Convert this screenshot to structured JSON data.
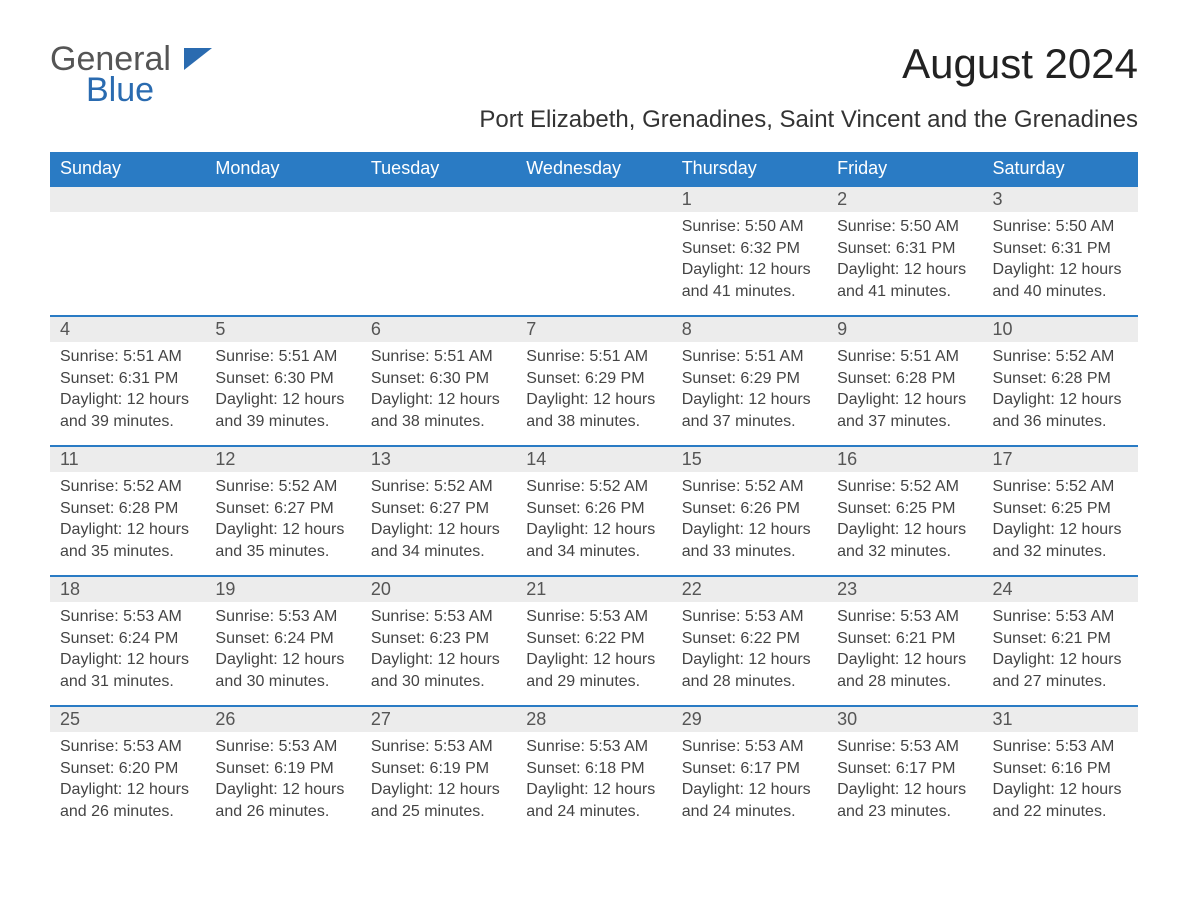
{
  "logo": {
    "text1": "General",
    "text2": "Blue"
  },
  "title": "August 2024",
  "location": "Port Elizabeth, Grenadines, Saint Vincent and the Grenadines",
  "colors": {
    "header_bg": "#2a7bc4",
    "header_text": "#ffffff",
    "daynum_bg": "#ececec",
    "border": "#2a7bc4",
    "logo_blue": "#2a6bb0",
    "logo_gray": "#555555",
    "body_text": "#444444"
  },
  "weekdays": [
    "Sunday",
    "Monday",
    "Tuesday",
    "Wednesday",
    "Thursday",
    "Friday",
    "Saturday"
  ],
  "weeks": [
    [
      null,
      null,
      null,
      null,
      {
        "n": "1",
        "sr": "5:50 AM",
        "ss": "6:32 PM",
        "dl": "12 hours and 41 minutes."
      },
      {
        "n": "2",
        "sr": "5:50 AM",
        "ss": "6:31 PM",
        "dl": "12 hours and 41 minutes."
      },
      {
        "n": "3",
        "sr": "5:50 AM",
        "ss": "6:31 PM",
        "dl": "12 hours and 40 minutes."
      }
    ],
    [
      {
        "n": "4",
        "sr": "5:51 AM",
        "ss": "6:31 PM",
        "dl": "12 hours and 39 minutes."
      },
      {
        "n": "5",
        "sr": "5:51 AM",
        "ss": "6:30 PM",
        "dl": "12 hours and 39 minutes."
      },
      {
        "n": "6",
        "sr": "5:51 AM",
        "ss": "6:30 PM",
        "dl": "12 hours and 38 minutes."
      },
      {
        "n": "7",
        "sr": "5:51 AM",
        "ss": "6:29 PM",
        "dl": "12 hours and 38 minutes."
      },
      {
        "n": "8",
        "sr": "5:51 AM",
        "ss": "6:29 PM",
        "dl": "12 hours and 37 minutes."
      },
      {
        "n": "9",
        "sr": "5:51 AM",
        "ss": "6:28 PM",
        "dl": "12 hours and 37 minutes."
      },
      {
        "n": "10",
        "sr": "5:52 AM",
        "ss": "6:28 PM",
        "dl": "12 hours and 36 minutes."
      }
    ],
    [
      {
        "n": "11",
        "sr": "5:52 AM",
        "ss": "6:28 PM",
        "dl": "12 hours and 35 minutes."
      },
      {
        "n": "12",
        "sr": "5:52 AM",
        "ss": "6:27 PM",
        "dl": "12 hours and 35 minutes."
      },
      {
        "n": "13",
        "sr": "5:52 AM",
        "ss": "6:27 PM",
        "dl": "12 hours and 34 minutes."
      },
      {
        "n": "14",
        "sr": "5:52 AM",
        "ss": "6:26 PM",
        "dl": "12 hours and 34 minutes."
      },
      {
        "n": "15",
        "sr": "5:52 AM",
        "ss": "6:26 PM",
        "dl": "12 hours and 33 minutes."
      },
      {
        "n": "16",
        "sr": "5:52 AM",
        "ss": "6:25 PM",
        "dl": "12 hours and 32 minutes."
      },
      {
        "n": "17",
        "sr": "5:52 AM",
        "ss": "6:25 PM",
        "dl": "12 hours and 32 minutes."
      }
    ],
    [
      {
        "n": "18",
        "sr": "5:53 AM",
        "ss": "6:24 PM",
        "dl": "12 hours and 31 minutes."
      },
      {
        "n": "19",
        "sr": "5:53 AM",
        "ss": "6:24 PM",
        "dl": "12 hours and 30 minutes."
      },
      {
        "n": "20",
        "sr": "5:53 AM",
        "ss": "6:23 PM",
        "dl": "12 hours and 30 minutes."
      },
      {
        "n": "21",
        "sr": "5:53 AM",
        "ss": "6:22 PM",
        "dl": "12 hours and 29 minutes."
      },
      {
        "n": "22",
        "sr": "5:53 AM",
        "ss": "6:22 PM",
        "dl": "12 hours and 28 minutes."
      },
      {
        "n": "23",
        "sr": "5:53 AM",
        "ss": "6:21 PM",
        "dl": "12 hours and 28 minutes."
      },
      {
        "n": "24",
        "sr": "5:53 AM",
        "ss": "6:21 PM",
        "dl": "12 hours and 27 minutes."
      }
    ],
    [
      {
        "n": "25",
        "sr": "5:53 AM",
        "ss": "6:20 PM",
        "dl": "12 hours and 26 minutes."
      },
      {
        "n": "26",
        "sr": "5:53 AM",
        "ss": "6:19 PM",
        "dl": "12 hours and 26 minutes."
      },
      {
        "n": "27",
        "sr": "5:53 AM",
        "ss": "6:19 PM",
        "dl": "12 hours and 25 minutes."
      },
      {
        "n": "28",
        "sr": "5:53 AM",
        "ss": "6:18 PM",
        "dl": "12 hours and 24 minutes."
      },
      {
        "n": "29",
        "sr": "5:53 AM",
        "ss": "6:17 PM",
        "dl": "12 hours and 24 minutes."
      },
      {
        "n": "30",
        "sr": "5:53 AM",
        "ss": "6:17 PM",
        "dl": "12 hours and 23 minutes."
      },
      {
        "n": "31",
        "sr": "5:53 AM",
        "ss": "6:16 PM",
        "dl": "12 hours and 22 minutes."
      }
    ]
  ],
  "labels": {
    "sunrise": "Sunrise: ",
    "sunset": "Sunset: ",
    "daylight": "Daylight: "
  }
}
